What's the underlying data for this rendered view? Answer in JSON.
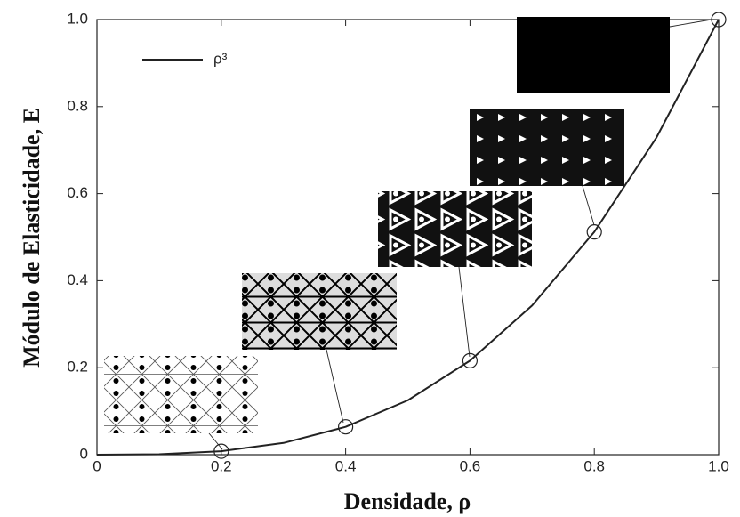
{
  "chart_data": {
    "type": "line",
    "xlabel": "Densidade, ρ",
    "ylabel": "Módulo de Elasticidade, E",
    "series": [
      {
        "name": "ρ³",
        "color": "#222222",
        "x": [
          0,
          0.1,
          0.2,
          0.3,
          0.4,
          0.5,
          0.6,
          0.7,
          0.8,
          0.9,
          1.0
        ],
        "values": [
          0,
          0.001,
          0.008,
          0.027,
          0.064,
          0.125,
          0.216,
          0.343,
          0.512,
          0.729,
          1.0
        ]
      },
      {
        "color": "#222222",
        "marker": "circle",
        "x": [
          0.2,
          0.4,
          0.6,
          0.8,
          1.0
        ],
        "values": [
          0.008,
          0.064,
          0.216,
          0.512,
          1.0
        ]
      }
    ],
    "xlim": [
      0,
      1
    ],
    "ylim": [
      0,
      1
    ],
    "xticks": [
      0,
      0.2,
      0.4,
      0.6,
      0.8,
      {
        "value": 1,
        "label": "1.0"
      }
    ],
    "yticks": [
      0,
      0.2,
      0.4,
      0.6,
      0.8,
      {
        "value": 1,
        "label": "1.0"
      }
    ],
    "legend": "upper-left"
  }
}
